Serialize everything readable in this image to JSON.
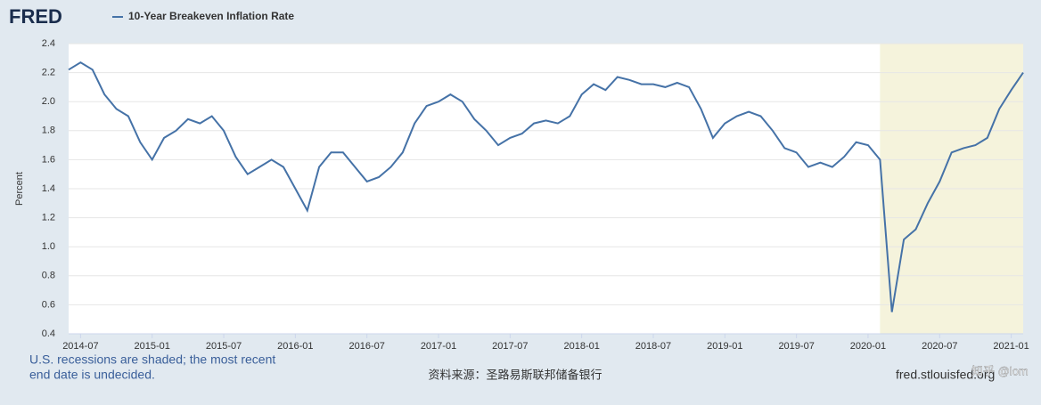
{
  "logo": "FRED",
  "note": [
    "U.S. recessions are shaded; the most recent",
    "end date is undecided."
  ],
  "source": "资料来源：圣路易斯联邦储备银行",
  "site": "fred.stlouisfed.org",
  "watermark": "知乎 @lom",
  "chart_data": {
    "type": "line",
    "ylabel": "Percent",
    "x": [
      "2014-06",
      "2014-07",
      "2014-08",
      "2014-09",
      "2014-10",
      "2014-11",
      "2014-12",
      "2015-01",
      "2015-02",
      "2015-03",
      "2015-04",
      "2015-05",
      "2015-06",
      "2015-07",
      "2015-08",
      "2015-09",
      "2015-10",
      "2015-11",
      "2015-12",
      "2016-01",
      "2016-02",
      "2016-03",
      "2016-04",
      "2016-05",
      "2016-06",
      "2016-07",
      "2016-08",
      "2016-09",
      "2016-10",
      "2016-11",
      "2016-12",
      "2017-01",
      "2017-02",
      "2017-03",
      "2017-04",
      "2017-05",
      "2017-06",
      "2017-07",
      "2017-08",
      "2017-09",
      "2017-10",
      "2017-11",
      "2017-12",
      "2018-01",
      "2018-02",
      "2018-03",
      "2018-04",
      "2018-05",
      "2018-06",
      "2018-07",
      "2018-08",
      "2018-09",
      "2018-10",
      "2018-11",
      "2018-12",
      "2019-01",
      "2019-02",
      "2019-03",
      "2019-04",
      "2019-05",
      "2019-06",
      "2019-07",
      "2019-08",
      "2019-09",
      "2019-10",
      "2019-11",
      "2019-12",
      "2020-01",
      "2020-02",
      "2020-03",
      "2020-04",
      "2020-05",
      "2020-06",
      "2020-07",
      "2020-08",
      "2020-09",
      "2020-10",
      "2020-11",
      "2020-12",
      "2021-01",
      "2021-02"
    ],
    "series": [
      {
        "name": "10-Year Breakeven Inflation Rate",
        "color": "#4572a7",
        "values": [
          2.22,
          2.27,
          2.22,
          2.05,
          1.95,
          1.9,
          1.72,
          1.6,
          1.75,
          1.8,
          1.88,
          1.85,
          1.9,
          1.8,
          1.62,
          1.5,
          1.55,
          1.6,
          1.55,
          1.4,
          1.25,
          1.55,
          1.65,
          1.65,
          1.55,
          1.45,
          1.48,
          1.55,
          1.65,
          1.85,
          1.97,
          2.0,
          2.05,
          2.0,
          1.88,
          1.8,
          1.7,
          1.75,
          1.78,
          1.85,
          1.87,
          1.85,
          1.9,
          2.05,
          2.12,
          2.08,
          2.17,
          2.15,
          2.12,
          2.12,
          2.1,
          2.13,
          2.1,
          1.95,
          1.75,
          1.85,
          1.9,
          1.93,
          1.9,
          1.8,
          1.68,
          1.65,
          1.55,
          1.58,
          1.55,
          1.62,
          1.72,
          1.7,
          1.6,
          0.55,
          1.05,
          1.12,
          1.3,
          1.45,
          1.65,
          1.68,
          1.7,
          1.75,
          1.95,
          2.08,
          2.2
        ]
      }
    ],
    "recession": {
      "start": "2020-02"
    },
    "recession_color": "#f5f3dc",
    "xlim": [
      "2014-06",
      "2021-02"
    ],
    "xticks": [
      "2014-07",
      "2015-01",
      "2015-07",
      "2016-01",
      "2016-07",
      "2017-01",
      "2017-07",
      "2018-01",
      "2018-07",
      "2019-01",
      "2019-07",
      "2020-01",
      "2020-07",
      "2021-01"
    ],
    "ylim": [
      0.4,
      2.4
    ],
    "yticks": [
      0.4,
      0.6,
      0.8,
      {
        "value": 1,
        "label": "1.0"
      },
      1.2,
      1.4,
      1.6,
      1.8,
      {
        "value": 2,
        "label": "2.0"
      },
      2.2,
      2.4
    ],
    "grid": true
  }
}
